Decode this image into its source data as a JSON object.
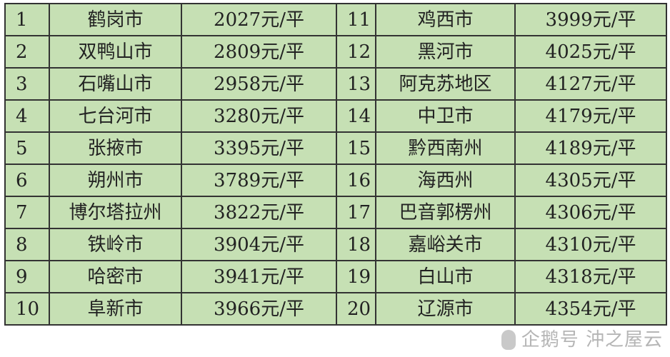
{
  "table": {
    "rows": [
      {
        "left": {
          "rank": "1",
          "city": "鹤岗市",
          "price": "2027元/平"
        },
        "right": {
          "rank": "11",
          "city": "鸡西市",
          "price": "3999元/平"
        }
      },
      {
        "left": {
          "rank": "2",
          "city": "双鸭山市",
          "price": "2809元/平"
        },
        "right": {
          "rank": "12",
          "city": "黑河市",
          "price": "4025元/平"
        }
      },
      {
        "left": {
          "rank": "3",
          "city": "石嘴山市",
          "price": "2958元/平"
        },
        "right": {
          "rank": "13",
          "city": "阿克苏地区",
          "price": "4127元/平"
        }
      },
      {
        "left": {
          "rank": "4",
          "city": "七台河市",
          "price": "3280元/平"
        },
        "right": {
          "rank": "14",
          "city": "中卫市",
          "price": "4179元/平"
        }
      },
      {
        "left": {
          "rank": "5",
          "city": "张掖市",
          "price": "3395元/平"
        },
        "right": {
          "rank": "15",
          "city": "黔西南州",
          "price": "4189元/平"
        }
      },
      {
        "left": {
          "rank": "6",
          "city": "朔州市",
          "price": "3789元/平"
        },
        "right": {
          "rank": "16",
          "city": "海西州",
          "price": "4305元/平"
        }
      },
      {
        "left": {
          "rank": "7",
          "city": "博尔塔拉州",
          "price": "3822元/平"
        },
        "right": {
          "rank": "17",
          "city": "巴音郭楞州",
          "price": "4306元/平"
        }
      },
      {
        "left": {
          "rank": "8",
          "city": "铁岭市",
          "price": "3904元/平"
        },
        "right": {
          "rank": "18",
          "city": "嘉峪关市",
          "price": "4310元/平"
        }
      },
      {
        "left": {
          "rank": "9",
          "city": "哈密市",
          "price": "3941元/平"
        },
        "right": {
          "rank": "19",
          "city": "白山市",
          "price": "4318元/平"
        }
      },
      {
        "left": {
          "rank": "10",
          "city": "阜新市",
          "price": "3966元/平"
        },
        "right": {
          "rank": "20",
          "city": "辽源市",
          "price": "4354元/平"
        }
      }
    ]
  },
  "watermark": "企鹅号 沖之屋云",
  "colors": {
    "cell_bg": "#c6e0b4",
    "border": "#333333"
  }
}
